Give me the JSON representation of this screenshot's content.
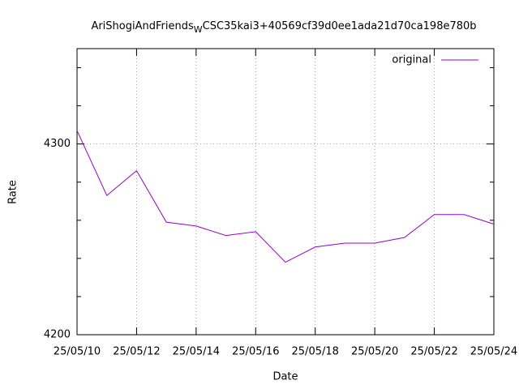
{
  "chart_data": {
    "type": "line",
    "title_parts": [
      "AriShogiAndFriends",
      "W",
      "CSC35kai3+40569cf39d0ee1ada21d70ca198e780b"
    ],
    "x_label": "Date",
    "y_label": "Rate",
    "x": [
      "25/05/10",
      "25/05/11",
      "25/05/12",
      "25/05/13",
      "25/05/14",
      "25/05/15",
      "25/05/16",
      "25/05/17",
      "25/05/18",
      "25/05/19",
      "25/05/20",
      "25/05/21",
      "25/05/22",
      "25/05/23",
      "25/05/24"
    ],
    "xticks": [
      "25/05/10",
      "25/05/12",
      "25/05/14",
      "25/05/16",
      "25/05/18",
      "25/05/20",
      "25/05/22",
      "25/05/24"
    ],
    "series": [
      {
        "name": "original",
        "color": "#9400d3",
        "values": [
          4307,
          4273,
          4286,
          4259,
          4257,
          4252,
          4254,
          4238,
          4246,
          4248,
          4248,
          4251,
          4263,
          4263,
          4258
        ]
      }
    ],
    "ylim": [
      4200,
      4350
    ],
    "yticks": [
      4200,
      4300
    ],
    "yminorticks": [
      4220,
      4240,
      4260,
      4280,
      4320,
      4340
    ],
    "grid": true,
    "legend": "top-right"
  }
}
